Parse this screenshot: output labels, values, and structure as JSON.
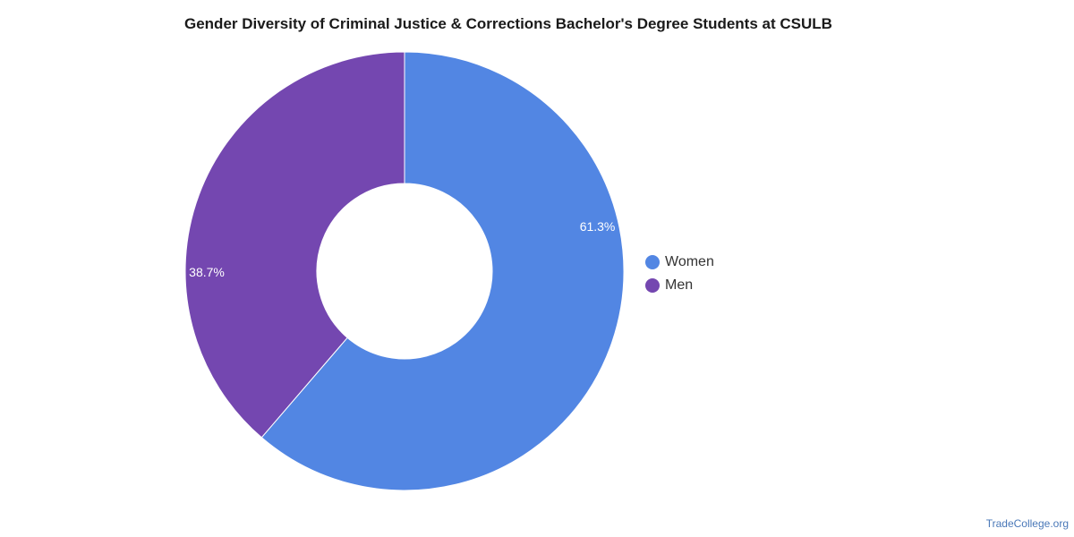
{
  "chart_data": {
    "type": "pie",
    "style": "donut",
    "title": "Gender Diversity of Criminal Justice & Corrections Bachelor's Degree Students at CSULB",
    "legend_position": "right",
    "slices": [
      {
        "name": "Women",
        "value": 61.3,
        "label": "61.3%",
        "color": "#5286E3"
      },
      {
        "name": "Men",
        "value": 38.7,
        "label": "38.7%",
        "color": "#7447B0"
      }
    ]
  },
  "watermark": "TradeCollege.org"
}
